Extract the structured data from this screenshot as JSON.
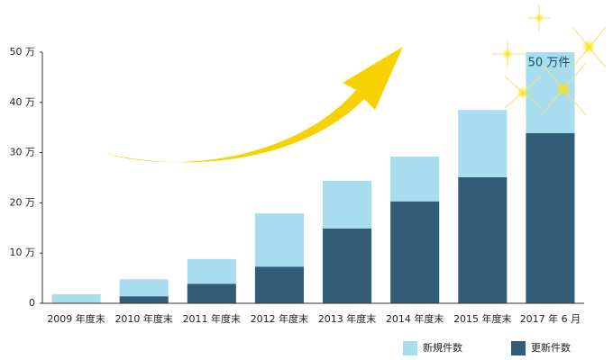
{
  "chart_data": {
    "type": "stacked-bar",
    "categories": [
      "2009 年度末",
      "2010 年度末",
      "2011 年度末",
      "2012 年度末",
      "2013 年度末",
      "2014 年度末",
      "2015 年度末",
      "2017 年 6 月"
    ],
    "series": [
      {
        "name": "更新件数",
        "color": "#335c78",
        "values": [
          0,
          1.4,
          3.9,
          7.3,
          14.9,
          20.3,
          25.1,
          33.9
        ]
      },
      {
        "name": "新規件数",
        "color": "#a8dcef",
        "values": [
          1.8,
          3.4,
          4.9,
          10.6,
          9.5,
          8.9,
          13.4,
          16.1
        ]
      }
    ],
    "ylim": [
      0,
      50
    ],
    "yticks": [
      0,
      {
        "value": 10,
        "label": "10 万"
      },
      {
        "value": 20,
        "label": "20 万"
      },
      {
        "value": 30,
        "label": "30 万"
      },
      {
        "value": 40,
        "label": "40 万"
      },
      {
        "value": 50,
        "label": "50 万"
      }
    ],
    "grid": false,
    "annotation": "50 万件",
    "legend": "bottom-right"
  }
}
